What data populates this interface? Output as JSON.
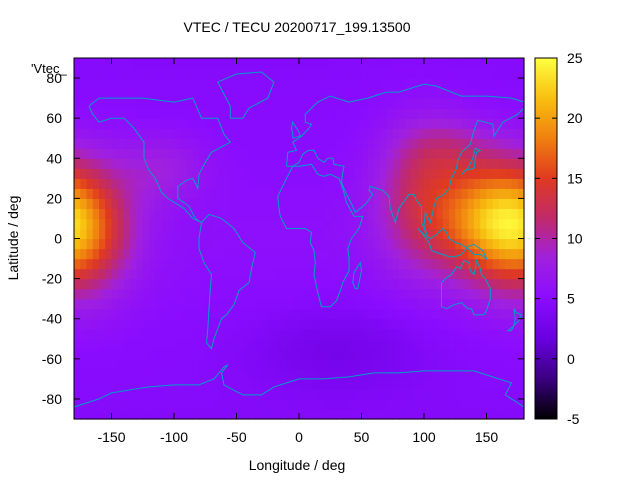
{
  "chart_data": {
    "type": "heatmap",
    "title": "VTEC / TECU 20200717_199.13500",
    "xlabel": "Longitude / deg",
    "ylabel": "Latitude / deg",
    "key_label": "'Vtec_",
    "xlim": [
      -180,
      180
    ],
    "ylim": [
      -90,
      90
    ],
    "x_ticks": [
      -150,
      -100,
      -50,
      0,
      50,
      100,
      150
    ],
    "y_ticks": [
      -80,
      -60,
      -40,
      -20,
      0,
      20,
      40,
      60,
      80
    ],
    "colorbar": {
      "range": [
        -5,
        25
      ],
      "ticks": [
        -5,
        0,
        5,
        10,
        15,
        20,
        25
      ]
    },
    "palette": [
      "#000000",
      "#3a0080",
      "#6a00e0",
      "#8a0cff",
      "#a020e0",
      "#c02a6a",
      "#e03a20",
      "#f08010",
      "#f8c010",
      "#ffff40"
    ],
    "coastline_color": "#00a0c8",
    "grid": false,
    "field_model": {
      "background": 5.5,
      "polar_value": 4.5,
      "blobs": [
        {
          "lon": -175,
          "lat": 5,
          "sd_lon": 28,
          "sd_lat": 22,
          "amp": 11
        },
        {
          "lon": 150,
          "lat": 10,
          "sd_lon": 30,
          "sd_lat": 20,
          "amp": 12
        },
        {
          "lon": 95,
          "lat": 20,
          "sd_lon": 25,
          "sd_lat": 25,
          "amp": 6
        },
        {
          "lon": 120,
          "lat": 45,
          "sd_lon": 25,
          "sd_lat": 12,
          "amp": 3
        },
        {
          "lon": -110,
          "lat": 35,
          "sd_lon": 25,
          "sd_lat": 12,
          "amp": 3
        },
        {
          "lon": 30,
          "lat": -55,
          "sd_lon": 50,
          "sd_lat": 15,
          "amp": -2
        }
      ]
    }
  }
}
